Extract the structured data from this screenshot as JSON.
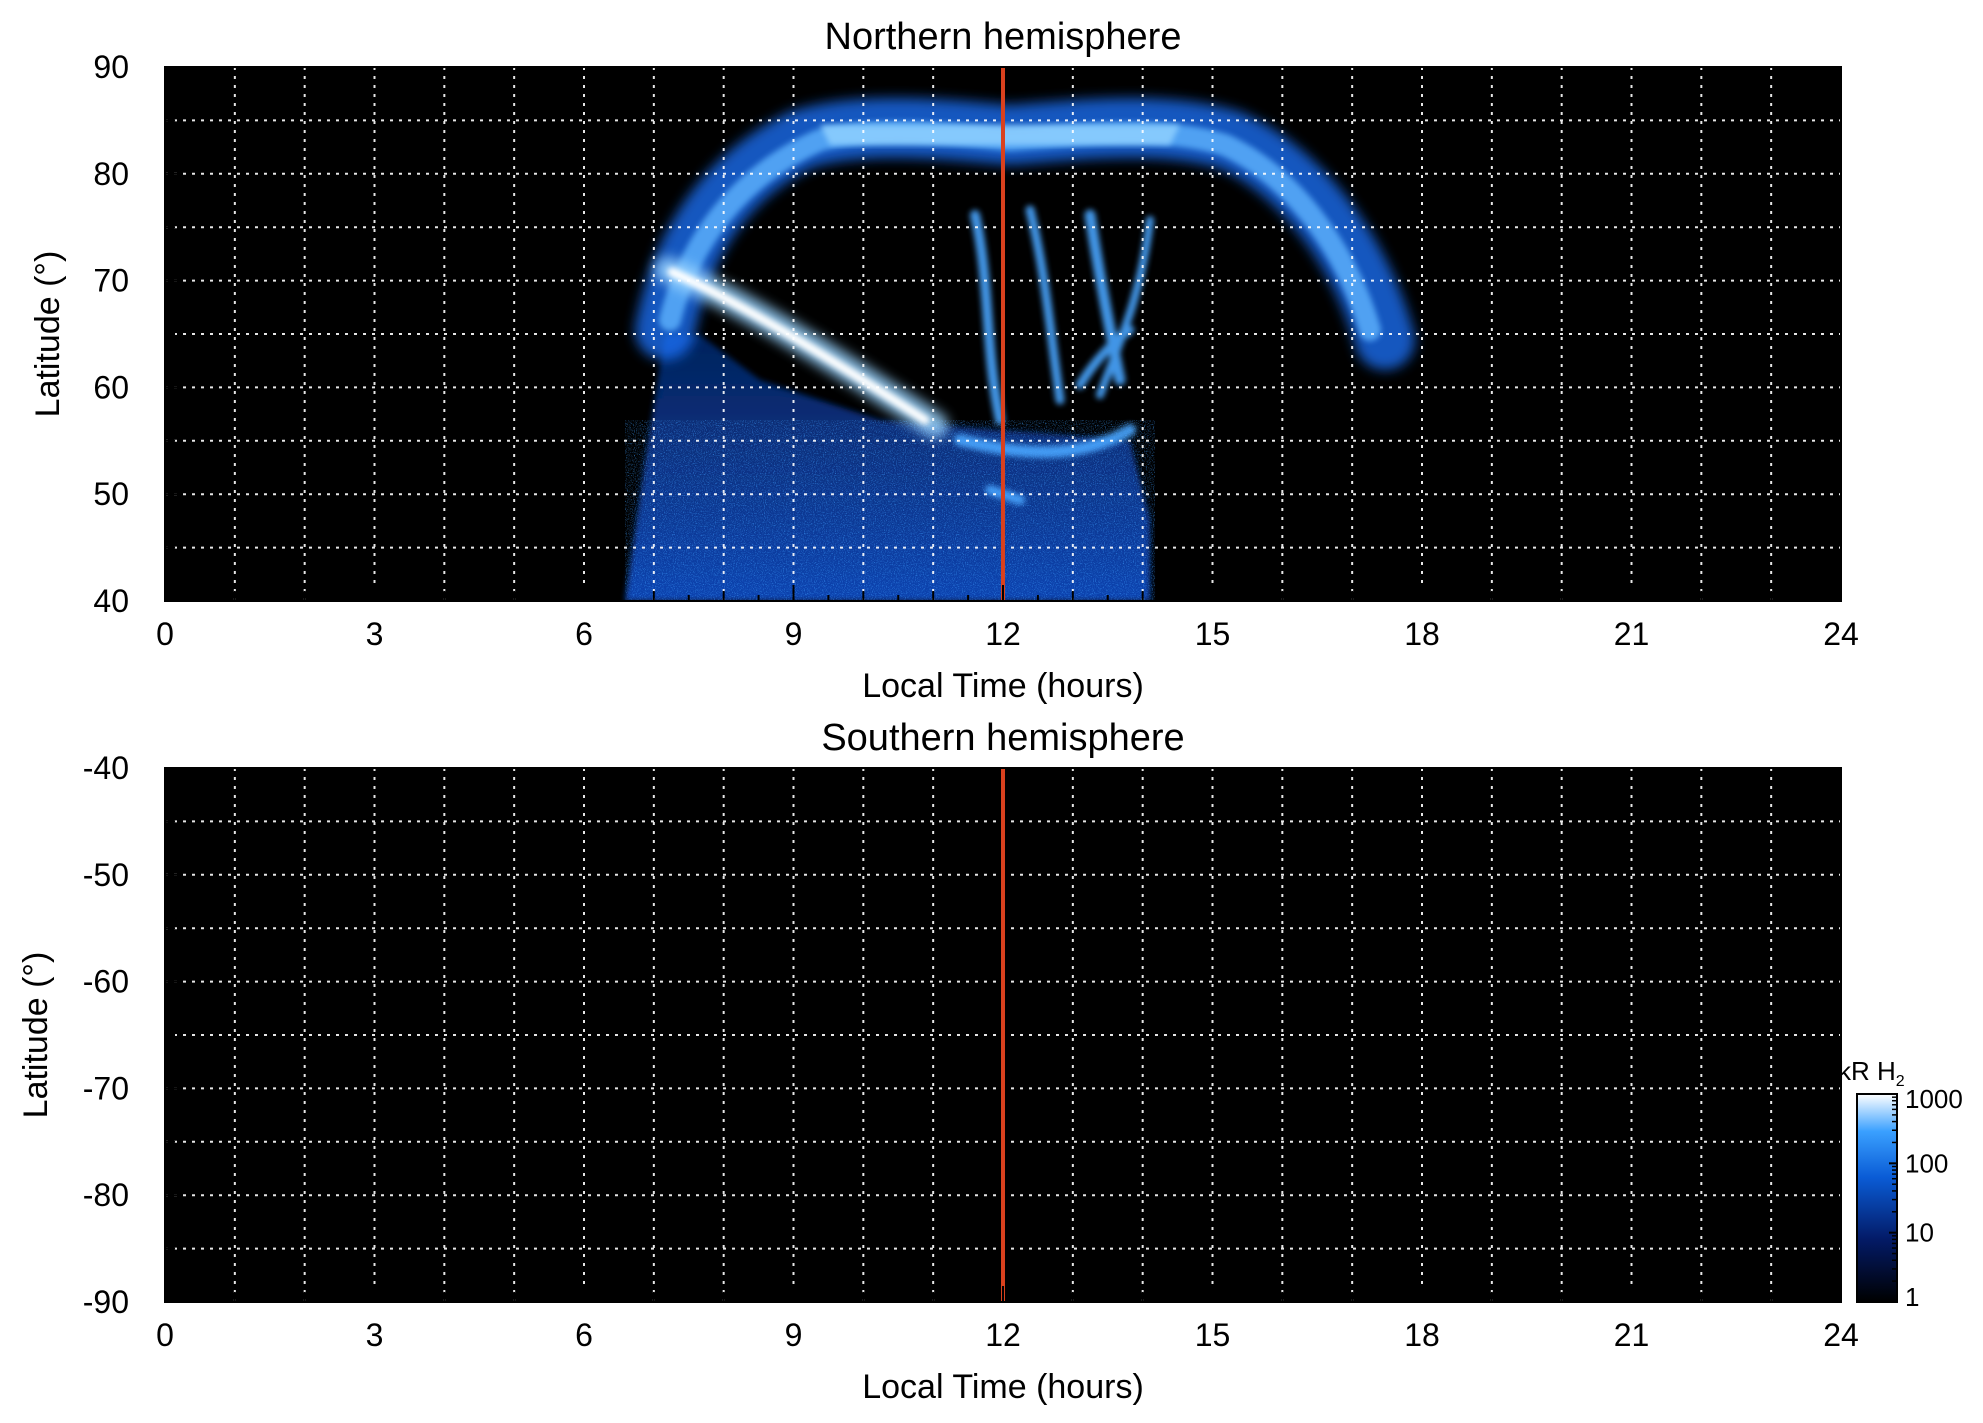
{
  "chart_data": [
    {
      "type": "heatmap",
      "title": "Northern hemisphere",
      "xlabel": "Local Time (hours)",
      "ylabel": "Latitude (°)",
      "xlim": [
        0,
        24
      ],
      "ylim": [
        40,
        90
      ],
      "xticks": [
        0,
        3,
        6,
        9,
        12,
        15,
        18,
        21,
        24
      ],
      "xtick_labels": [
        "0",
        "3",
        "6",
        "9",
        "12",
        "15",
        "18",
        "21",
        "24"
      ],
      "yticks": [
        40,
        50,
        60,
        70,
        80,
        90
      ],
      "ytick_labels": [
        "40",
        "50",
        "60",
        "70",
        "80",
        "90"
      ],
      "grid": true,
      "grid_step_x": 1,
      "grid_step_y": 5,
      "marker_line_x": 12,
      "marker_line_color": "#d9411e",
      "background_color": "#000000",
      "emission_regions": [
        {
          "feature": "main auroral arc",
          "lt_start": 7.0,
          "lt_end": 17.5,
          "lat_start": 65,
          "lat_peak": 85,
          "level_kR": 300
        },
        {
          "feature": "bright dawn arc",
          "lt_start": 7.2,
          "lt_end": 11.0,
          "lat_start": 70,
          "lat_end": 57,
          "level_kR": 1000
        },
        {
          "feature": "dayside filamentary emission",
          "lt_start": 11.0,
          "lt_end": 14.0,
          "lat_start": 55,
          "lat_end": 77,
          "level_kR": 200
        },
        {
          "feature": "diffuse low-latitude emission",
          "lt_start": 6.6,
          "lt_end": 14.2,
          "lat_start": 40,
          "lat_end": 58,
          "level_kR": 50
        }
      ]
    },
    {
      "type": "heatmap",
      "title": "Southern hemisphere",
      "xlabel": "Local Time (hours)",
      "ylabel": "Latitude (°)",
      "xlim": [
        0,
        24
      ],
      "ylim": [
        -90,
        -40
      ],
      "xticks": [
        0,
        3,
        6,
        9,
        12,
        15,
        18,
        21,
        24
      ],
      "xtick_labels": [
        "0",
        "3",
        "6",
        "9",
        "12",
        "15",
        "18",
        "21",
        "24"
      ],
      "yticks": [
        -40,
        -50,
        -60,
        -70,
        -80,
        -90
      ],
      "ytick_labels": [
        "-40",
        "-50",
        "-60",
        "-70",
        "-80",
        "-90"
      ],
      "grid": true,
      "grid_step_x": 1,
      "grid_step_y": 5,
      "marker_line_x": 12,
      "marker_line_color": "#d9411e",
      "background_color": "#000000",
      "emission_regions": []
    }
  ],
  "colorbar": {
    "label_main": "kR H",
    "label_sub": "2",
    "scale": "log",
    "range": [
      1,
      1000
    ],
    "ticks": [
      "1000",
      "100",
      "10",
      "1"
    ],
    "colors": [
      "#000000",
      "#031a66",
      "#0a5cd6",
      "#3aa0ff",
      "#ffffff"
    ]
  }
}
